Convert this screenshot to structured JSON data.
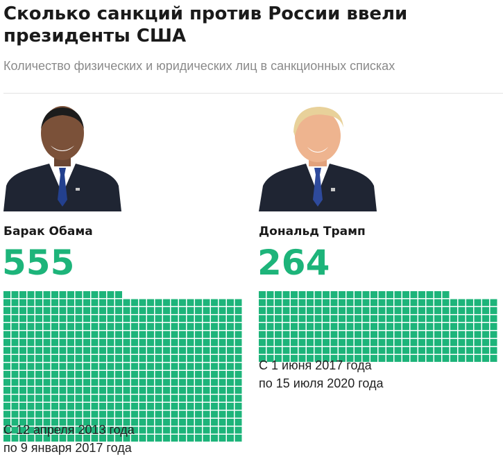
{
  "header": {
    "title": "Сколько санкций против России ввели президенты США",
    "subtitle": "Количество физических и юридических лиц в санкционных списках"
  },
  "colors": {
    "accent": "#1db47a",
    "title": "#1a1a1a",
    "subtitle": "#8a8a8a"
  },
  "chart_data": {
    "type": "waffle",
    "title": "Сколько санкций против России ввели президенты США",
    "subtitle": "Количество физических и юридических лиц в санкционных списках",
    "unit_per_square": 1,
    "series": [
      {
        "name": "Барак Обама",
        "value": 555,
        "value_label": "555",
        "period_start": "С 12 апреля 2013 года",
        "period_end": "по 9 января 2017 года",
        "color": "#1db47a",
        "portrait": "barack-obama-portrait"
      },
      {
        "name": "Дональд Трамп",
        "value": 264,
        "value_label": "264",
        "period_start": "С 1 июня 2017 года",
        "period_end": "по 15 июля 2020 года",
        "color": "#1db47a",
        "portrait": "donald-trump-portrait"
      }
    ]
  }
}
